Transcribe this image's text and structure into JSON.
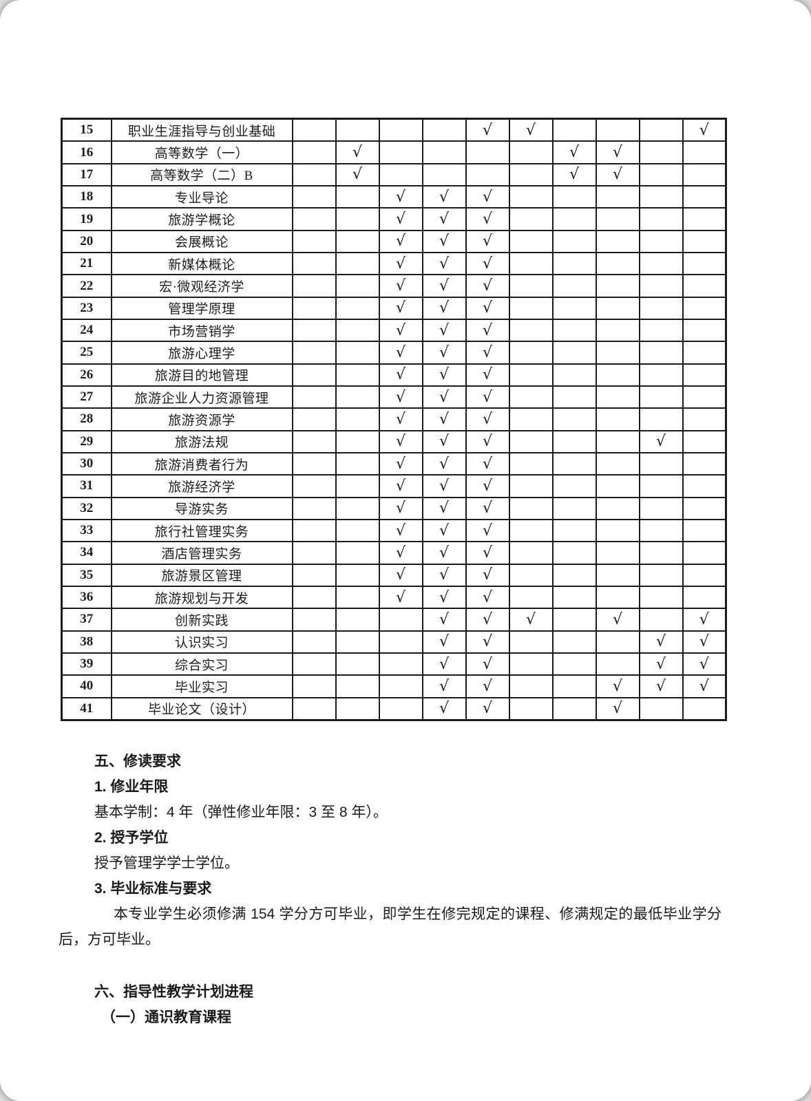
{
  "table": {
    "check_symbol": "√",
    "check_column_count": 10,
    "rows": [
      {
        "no": "15",
        "name": "职业生涯指导与创业基础",
        "checks": [
          4,
          5,
          9
        ]
      },
      {
        "no": "16",
        "name": "高等数学（一）",
        "checks": [
          1,
          6,
          7
        ]
      },
      {
        "no": "17",
        "name": "高等数学（二）B",
        "checks": [
          1,
          6,
          7
        ]
      },
      {
        "no": "18",
        "name": "专业导论",
        "checks": [
          2,
          3,
          4
        ]
      },
      {
        "no": "19",
        "name": "旅游学概论",
        "checks": [
          2,
          3,
          4
        ]
      },
      {
        "no": "20",
        "name": "会展概论",
        "checks": [
          2,
          3,
          4
        ]
      },
      {
        "no": "21",
        "name": "新媒体概论",
        "checks": [
          2,
          3,
          4
        ]
      },
      {
        "no": "22",
        "name": "宏·微观经济学",
        "checks": [
          2,
          3,
          4
        ]
      },
      {
        "no": "23",
        "name": "管理学原理",
        "checks": [
          2,
          3,
          4
        ]
      },
      {
        "no": "24",
        "name": "市场营销学",
        "checks": [
          2,
          3,
          4
        ]
      },
      {
        "no": "25",
        "name": "旅游心理学",
        "checks": [
          2,
          3,
          4
        ]
      },
      {
        "no": "26",
        "name": "旅游目的地管理",
        "checks": [
          2,
          3,
          4
        ]
      },
      {
        "no": "27",
        "name": "旅游企业人力资源管理",
        "checks": [
          2,
          3,
          4
        ]
      },
      {
        "no": "28",
        "name": "旅游资源学",
        "checks": [
          2,
          3,
          4
        ]
      },
      {
        "no": "29",
        "name": "旅游法规",
        "checks": [
          2,
          3,
          4,
          8
        ]
      },
      {
        "no": "30",
        "name": "旅游消费者行为",
        "checks": [
          2,
          3,
          4
        ]
      },
      {
        "no": "31",
        "name": "旅游经济学",
        "checks": [
          2,
          3,
          4
        ]
      },
      {
        "no": "32",
        "name": "导游实务",
        "checks": [
          2,
          3,
          4
        ]
      },
      {
        "no": "33",
        "name": "旅行社管理实务",
        "checks": [
          2,
          3,
          4
        ]
      },
      {
        "no": "34",
        "name": "酒店管理实务",
        "checks": [
          2,
          3,
          4
        ]
      },
      {
        "no": "35",
        "name": "旅游景区管理",
        "checks": [
          2,
          3,
          4
        ]
      },
      {
        "no": "36",
        "name": "旅游规划与开发",
        "checks": [
          2,
          3,
          4
        ]
      },
      {
        "no": "37",
        "name": "创新实践",
        "checks": [
          3,
          4,
          5,
          7,
          9
        ]
      },
      {
        "no": "38",
        "name": "认识实习",
        "checks": [
          3,
          4,
          8,
          9
        ]
      },
      {
        "no": "39",
        "name": "综合实习",
        "checks": [
          3,
          4,
          8,
          9
        ]
      },
      {
        "no": "40",
        "name": "毕业实习",
        "checks": [
          3,
          4,
          7,
          8,
          9
        ]
      },
      {
        "no": "41",
        "name": "毕业论文（设计）",
        "checks": [
          3,
          4,
          7
        ]
      }
    ]
  },
  "section5": {
    "heading": "五、修读要求",
    "item1_title": "1. 修业年限",
    "item1_body": "基本学制：4 年（弹性修业年限：3 至 8 年）。",
    "item2_title": "2. 授予学位",
    "item2_body": "授予管理学学士学位。",
    "item3_title": "3. 毕业标准与要求",
    "item3_body": "本专业学生必须修满 154 学分方可毕业，即学生在修完规定的课程、修满规定的最低毕业学分后，方可毕业。"
  },
  "section6": {
    "heading": "六、指导性教学计划进程",
    "sub_heading": "（一）通识教育课程"
  }
}
